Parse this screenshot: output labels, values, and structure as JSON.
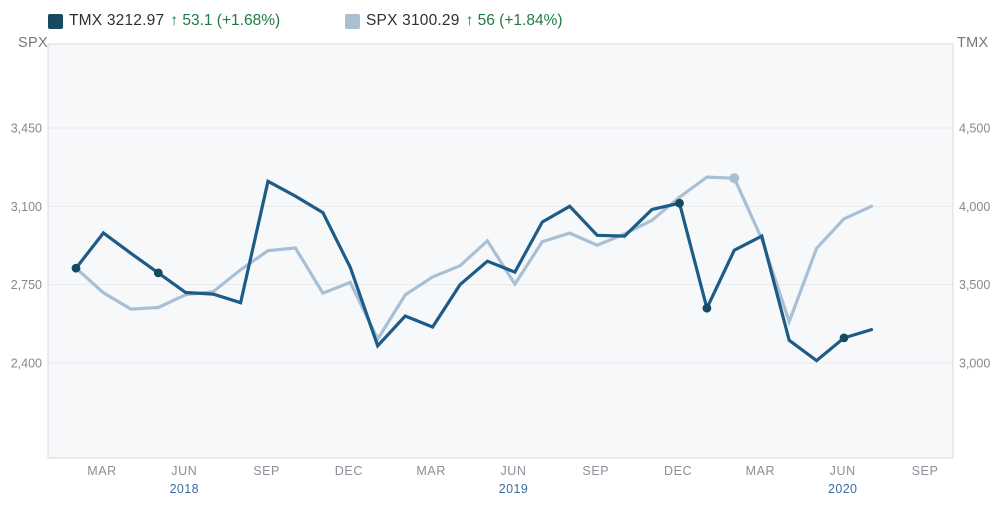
{
  "legend": {
    "tmx": {
      "label": "TMX",
      "value": "3212.97",
      "change": "↑ 53.1 (+1.68%)",
      "color": "#164a63"
    },
    "spx": {
      "label": "SPX",
      "value": "3100.29",
      "change": "↑ 56 (+1.84%)",
      "color": "#a9c0d4"
    }
  },
  "axes": {
    "left_title": "SPX",
    "right_title": "TMX",
    "left_ticks": [
      "3,450",
      "3,100",
      "2,750",
      "2,400"
    ],
    "right_ticks": [
      "4,500",
      "4,000",
      "3,500",
      "3,000"
    ],
    "x_ticks": [
      "MAR",
      "JUN",
      "SEP",
      "DEC",
      "MAR",
      "JUN",
      "SEP",
      "DEC",
      "MAR",
      "JUN",
      "SEP"
    ],
    "x_years": [
      {
        "label": "2018",
        "tick_index": 1
      },
      {
        "label": "2019",
        "tick_index": 5
      },
      {
        "label": "2020",
        "tick_index": 9
      }
    ]
  },
  "colors": {
    "positive_green": "#1e7d42",
    "tmx_line": "#1e5b86",
    "tmx_marker": "#164a63",
    "spx_line": "#a9c0d4",
    "grid": "#e8eaed",
    "plot_border": "#d7dade",
    "plot_bg": "#f7f8fa"
  },
  "chart_data": {
    "type": "line",
    "title": "",
    "grid": "horizontal-only",
    "legend_position": "top",
    "categories": [
      "Jan 2018",
      "Feb 2018",
      "Mar 2018",
      "Apr 2018",
      "May 2018",
      "Jun 2018",
      "Jul 2018",
      "Aug 2018",
      "Sep 2018",
      "Oct 2018",
      "Nov 2018",
      "Dec 2018",
      "Jan 2019",
      "Feb 2019",
      "Mar 2019",
      "Apr 2019",
      "May 2019",
      "Jun 2019",
      "Jul 2019",
      "Aug 2019",
      "Sep 2019",
      "Oct 2019",
      "Nov 2019",
      "Dec 2019",
      "Jan 2020",
      "Feb 2020",
      "Mar 2020",
      "Apr 2020",
      "May 2020",
      "Jun 2020"
    ],
    "left_axis_tick_values": [
      3450,
      3100,
      2750,
      2400
    ],
    "right_axis_tick_values": [
      4500,
      4000,
      3500,
      3000
    ],
    "series": [
      {
        "name": "TMX",
        "axis": "right",
        "color": "#1e5b86",
        "marker_color": "#164a63",
        "marker_radius": 4.4,
        "marker_indices": [
          0,
          3,
          22,
          23,
          28
        ],
        "values": [
          3605,
          3830,
          3700,
          3575,
          3450,
          3440,
          3385,
          4160,
          4065,
          3960,
          3610,
          3110,
          3300,
          3230,
          3500,
          3650,
          3580,
          3900,
          4000,
          3815,
          3810,
          3980,
          4020,
          3350,
          3720,
          3810,
          3145,
          3015,
          3159.87,
          3212.97
        ]
      },
      {
        "name": "SPX",
        "axis": "left",
        "color": "#a9c0d4",
        "marker_color": "#a9c0d4",
        "marker_radius": 5,
        "marker_indices": [
          24
        ],
        "values": [
          2823.81,
          2713.83,
          2640.87,
          2648.05,
          2705.27,
          2718.37,
          2816.29,
          2901.52,
          2913.98,
          2711.74,
          2760.17,
          2506.85,
          2704.1,
          2784.49,
          2834.4,
          2945.83,
          2752.06,
          2941.76,
          2980.38,
          2926.46,
          2976.74,
          3037.56,
          3140.98,
          3230.78,
          3225.52,
          2954.22,
          2584.59,
          2912.43,
          3044.31,
          3100.29
        ]
      }
    ]
  }
}
